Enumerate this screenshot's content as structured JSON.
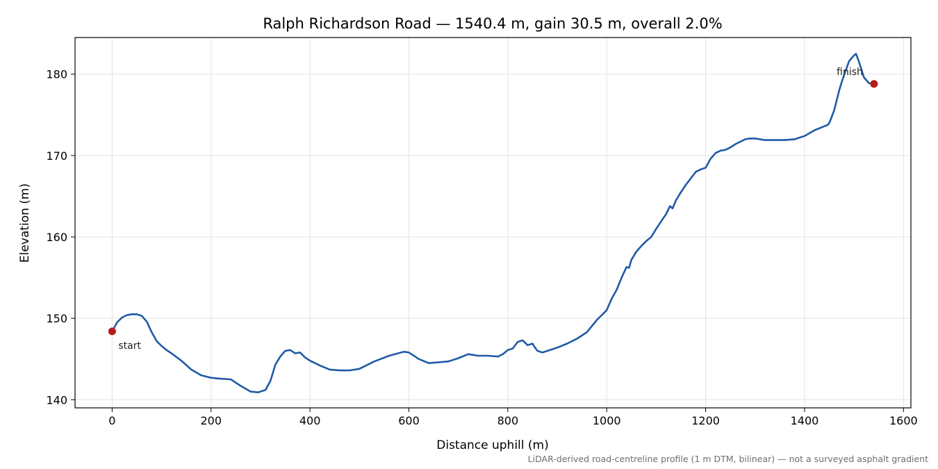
{
  "chart_data": {
    "type": "line",
    "title": "Ralph Richardson Road — 1540.4 m, gain 30.5 m, overall 2.0%",
    "xlabel": "Distance uphill (m)",
    "ylabel": "Elevation (m)",
    "xlim": [
      -75,
      1615
    ],
    "ylim": [
      139,
      184.5
    ],
    "xticks": [
      0,
      200,
      400,
      600,
      800,
      1000,
      1200,
      1400,
      1600
    ],
    "yticks": [
      140,
      150,
      160,
      170,
      180
    ],
    "grid": true,
    "series": [
      {
        "color": "#1f5aa6",
        "x": [
          0,
          10,
          20,
          30,
          40,
          50,
          60,
          70,
          80,
          90,
          100,
          110,
          120,
          140,
          160,
          180,
          200,
          215,
          240,
          260,
          280,
          295,
          310,
          320,
          330,
          340,
          350,
          360,
          370,
          380,
          390,
          400,
          420,
          440,
          460,
          480,
          500,
          530,
          560,
          590,
          600,
          620,
          640,
          660,
          680,
          700,
          720,
          740,
          760,
          780,
          790,
          800,
          810,
          820,
          830,
          840,
          850,
          855,
          860,
          870,
          880,
          900,
          920,
          940,
          960,
          980,
          1000,
          1010,
          1020,
          1030,
          1040,
          1045,
          1050,
          1060,
          1070,
          1080,
          1090,
          1100,
          1110,
          1120,
          1128,
          1133,
          1140,
          1150,
          1160,
          1170,
          1180,
          1190,
          1200,
          1210,
          1220,
          1230,
          1240,
          1250,
          1260,
          1280,
          1290,
          1300,
          1320,
          1340,
          1360,
          1380,
          1400,
          1420,
          1440,
          1448,
          1452,
          1460,
          1470,
          1475,
          1480,
          1490,
          1500,
          1504,
          1510,
          1520,
          1530,
          1540.4
        ],
        "y": [
          148.4,
          149.5,
          150.1,
          150.4,
          150.5,
          150.5,
          150.3,
          149.6,
          148.3,
          147.2,
          146.6,
          146.1,
          145.7,
          144.8,
          143.7,
          143.0,
          142.7,
          142.6,
          142.5,
          141.7,
          141.0,
          140.9,
          141.2,
          142.3,
          144.3,
          145.3,
          146.0,
          146.1,
          145.7,
          145.8,
          145.2,
          144.8,
          144.2,
          143.7,
          143.6,
          143.6,
          143.8,
          144.7,
          145.4,
          145.9,
          145.8,
          145.0,
          144.5,
          144.6,
          144.7,
          145.1,
          145.6,
          145.4,
          145.4,
          145.3,
          145.6,
          146.1,
          146.3,
          147.1,
          147.3,
          146.7,
          146.9,
          146.4,
          146.0,
          145.8,
          146.0,
          146.4,
          146.9,
          147.5,
          148.3,
          149.8,
          151.0,
          152.4,
          153.5,
          155.0,
          156.3,
          156.2,
          157.2,
          158.2,
          158.9,
          159.5,
          160.0,
          161.0,
          161.9,
          162.8,
          163.8,
          163.5,
          164.5,
          165.5,
          166.4,
          167.2,
          168.0,
          168.3,
          168.5,
          169.6,
          170.3,
          170.6,
          170.7,
          171.0,
          171.4,
          172.0,
          172.1,
          172.1,
          171.9,
          171.9,
          171.9,
          172.0,
          172.4,
          173.1,
          173.6,
          173.8,
          174.3,
          175.6,
          178.0,
          179.0,
          179.9,
          181.6,
          182.3,
          182.5,
          181.5,
          179.6,
          178.9,
          178.8
        ]
      }
    ],
    "markers": [
      {
        "x": 0,
        "y": 148.4,
        "label": "start",
        "color": "#b61c1c"
      },
      {
        "x": 1540.4,
        "y": 178.8,
        "label": "finish",
        "color": "#b61c1c"
      }
    ],
    "footnote": "LiDAR-derived road-centreline profile (1 m DTM, bilinear) — not a surveyed asphalt gradient"
  }
}
